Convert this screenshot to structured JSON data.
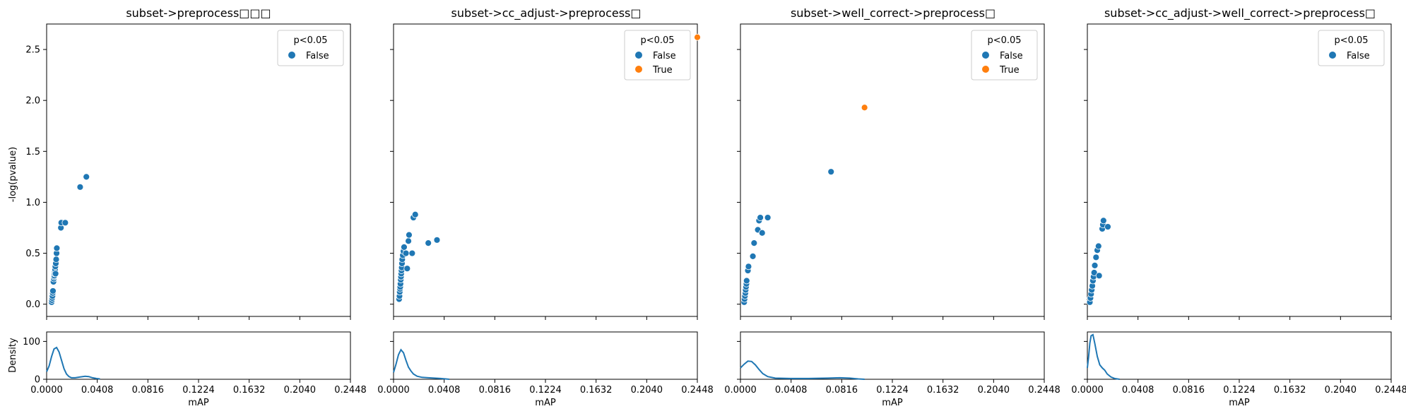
{
  "chart_data": {
    "type": "scatter",
    "shared_y_ticks": [
      "0.0",
      "0.5",
      "1.0",
      "1.5",
      "2.0",
      "2.5"
    ],
    "shared_x_ticks": [
      "0.0000",
      "0.0408",
      "0.0816",
      "0.1224",
      "0.1632",
      "0.2040",
      "0.2448"
    ],
    "xlim": [
      0,
      0.2448
    ],
    "ylim": [
      -0.12,
      2.75
    ],
    "density_ylim": [
      0,
      125
    ],
    "density_ticks": [
      "0",
      "100"
    ],
    "ylabel": "-log(pvalue)",
    "density_ylabel": "Density",
    "xlabel": "mAP",
    "colors": {
      "False": "#1f77b4",
      "True": "#ff7f0e"
    },
    "legend_title": "p<0.05",
    "legend_placement": "top-right",
    "panels": [
      {
        "title": "subset->preprocess□□□",
        "legend": [
          "False"
        ],
        "points": [
          {
            "x": 0.004,
            "y": 0.02,
            "g": "False"
          },
          {
            "x": 0.0042,
            "y": 0.04,
            "g": "False"
          },
          {
            "x": 0.0045,
            "y": 0.06,
            "g": "False"
          },
          {
            "x": 0.0047,
            "y": 0.08,
            "g": "False"
          },
          {
            "x": 0.0049,
            "y": 0.11,
            "g": "False"
          },
          {
            "x": 0.0051,
            "y": 0.13,
            "g": "False"
          },
          {
            "x": 0.0055,
            "y": 0.22,
            "g": "False"
          },
          {
            "x": 0.0058,
            "y": 0.25,
            "g": "False"
          },
          {
            "x": 0.006,
            "y": 0.27,
            "g": "False"
          },
          {
            "x": 0.0062,
            "y": 0.28,
            "g": "False"
          },
          {
            "x": 0.0064,
            "y": 0.3,
            "g": "False"
          },
          {
            "x": 0.0066,
            "y": 0.32,
            "g": "False"
          },
          {
            "x": 0.0068,
            "y": 0.34,
            "g": "False"
          },
          {
            "x": 0.007,
            "y": 0.37,
            "g": "False"
          },
          {
            "x": 0.0072,
            "y": 0.3,
            "g": "False"
          },
          {
            "x": 0.0074,
            "y": 0.4,
            "g": "False"
          },
          {
            "x": 0.0077,
            "y": 0.44,
            "g": "False"
          },
          {
            "x": 0.008,
            "y": 0.5,
            "g": "False"
          },
          {
            "x": 0.0082,
            "y": 0.55,
            "g": "False"
          },
          {
            "x": 0.0115,
            "y": 0.75,
            "g": "False"
          },
          {
            "x": 0.0118,
            "y": 0.8,
            "g": "False"
          },
          {
            "x": 0.015,
            "y": 0.8,
            "g": "False"
          },
          {
            "x": 0.027,
            "y": 1.15,
            "g": "False"
          },
          {
            "x": 0.032,
            "y": 1.25,
            "g": "False"
          }
        ],
        "density": [
          {
            "x": 0.0,
            "y": 20
          },
          {
            "x": 0.002,
            "y": 35
          },
          {
            "x": 0.004,
            "y": 60
          },
          {
            "x": 0.006,
            "y": 80
          },
          {
            "x": 0.008,
            "y": 84
          },
          {
            "x": 0.01,
            "y": 72
          },
          {
            "x": 0.012,
            "y": 50
          },
          {
            "x": 0.014,
            "y": 28
          },
          {
            "x": 0.016,
            "y": 14
          },
          {
            "x": 0.018,
            "y": 7
          },
          {
            "x": 0.02,
            "y": 4
          },
          {
            "x": 0.023,
            "y": 4
          },
          {
            "x": 0.027,
            "y": 6
          },
          {
            "x": 0.031,
            "y": 8
          },
          {
            "x": 0.034,
            "y": 7
          },
          {
            "x": 0.037,
            "y": 4
          },
          {
            "x": 0.04,
            "y": 2
          },
          {
            "x": 0.043,
            "y": 1
          }
        ]
      },
      {
        "title": "subset->cc_adjust->preprocess□",
        "legend": [
          "False",
          "True"
        ],
        "points": [
          {
            "x": 0.0045,
            "y": 0.05,
            "g": "False"
          },
          {
            "x": 0.0048,
            "y": 0.08,
            "g": "False"
          },
          {
            "x": 0.005,
            "y": 0.12,
            "g": "False"
          },
          {
            "x": 0.0052,
            "y": 0.15,
            "g": "False"
          },
          {
            "x": 0.0054,
            "y": 0.17,
            "g": "False"
          },
          {
            "x": 0.0056,
            "y": 0.2,
            "g": "False"
          },
          {
            "x": 0.0058,
            "y": 0.24,
            "g": "False"
          },
          {
            "x": 0.006,
            "y": 0.27,
            "g": "False"
          },
          {
            "x": 0.0062,
            "y": 0.3,
            "g": "False"
          },
          {
            "x": 0.0064,
            "y": 0.33,
            "g": "False"
          },
          {
            "x": 0.0066,
            "y": 0.36,
            "g": "False"
          },
          {
            "x": 0.0068,
            "y": 0.4,
            "g": "False"
          },
          {
            "x": 0.007,
            "y": 0.44,
            "g": "False"
          },
          {
            "x": 0.0075,
            "y": 0.48,
            "g": "False"
          },
          {
            "x": 0.008,
            "y": 0.52,
            "g": "False"
          },
          {
            "x": 0.0085,
            "y": 0.56,
            "g": "False"
          },
          {
            "x": 0.01,
            "y": 0.5,
            "g": "False"
          },
          {
            "x": 0.011,
            "y": 0.35,
            "g": "False"
          },
          {
            "x": 0.012,
            "y": 0.62,
            "g": "False"
          },
          {
            "x": 0.0125,
            "y": 0.68,
            "g": "False"
          },
          {
            "x": 0.015,
            "y": 0.5,
            "g": "False"
          },
          {
            "x": 0.016,
            "y": 0.85,
            "g": "False"
          },
          {
            "x": 0.0175,
            "y": 0.88,
            "g": "False"
          },
          {
            "x": 0.028,
            "y": 0.6,
            "g": "False"
          },
          {
            "x": 0.035,
            "y": 0.63,
            "g": "False"
          },
          {
            "x": 0.2448,
            "y": 2.62,
            "g": "True"
          }
        ],
        "density": [
          {
            "x": 0.0,
            "y": 18
          },
          {
            "x": 0.002,
            "y": 40
          },
          {
            "x": 0.004,
            "y": 65
          },
          {
            "x": 0.006,
            "y": 78
          },
          {
            "x": 0.008,
            "y": 70
          },
          {
            "x": 0.01,
            "y": 50
          },
          {
            "x": 0.012,
            "y": 32
          },
          {
            "x": 0.014,
            "y": 22
          },
          {
            "x": 0.016,
            "y": 14
          },
          {
            "x": 0.019,
            "y": 8
          },
          {
            "x": 0.023,
            "y": 5
          },
          {
            "x": 0.028,
            "y": 4
          },
          {
            "x": 0.033,
            "y": 3
          },
          {
            "x": 0.038,
            "y": 2
          },
          {
            "x": 0.042,
            "y": 1
          },
          {
            "x": 0.045,
            "y": 0
          }
        ]
      },
      {
        "title": "subset->well_correct->preprocess□",
        "legend": [
          "False",
          "True"
        ],
        "points": [
          {
            "x": 0.003,
            "y": 0.02,
            "g": "False"
          },
          {
            "x": 0.0033,
            "y": 0.05,
            "g": "False"
          },
          {
            "x": 0.0036,
            "y": 0.08,
            "g": "False"
          },
          {
            "x": 0.004,
            "y": 0.11,
            "g": "False"
          },
          {
            "x": 0.0042,
            "y": 0.14,
            "g": "False"
          },
          {
            "x": 0.0045,
            "y": 0.17,
            "g": "False"
          },
          {
            "x": 0.0048,
            "y": 0.2,
            "g": "False"
          },
          {
            "x": 0.005,
            "y": 0.23,
            "g": "False"
          },
          {
            "x": 0.006,
            "y": 0.33,
            "g": "False"
          },
          {
            "x": 0.0065,
            "y": 0.37,
            "g": "False"
          },
          {
            "x": 0.01,
            "y": 0.47,
            "g": "False"
          },
          {
            "x": 0.011,
            "y": 0.6,
            "g": "False"
          },
          {
            "x": 0.014,
            "y": 0.73,
            "g": "False"
          },
          {
            "x": 0.015,
            "y": 0.82,
            "g": "False"
          },
          {
            "x": 0.016,
            "y": 0.85,
            "g": "False"
          },
          {
            "x": 0.0175,
            "y": 0.7,
            "g": "False"
          },
          {
            "x": 0.022,
            "y": 0.85,
            "g": "False"
          },
          {
            "x": 0.073,
            "y": 1.3,
            "g": "False"
          },
          {
            "x": 0.1,
            "y": 1.93,
            "g": "True"
          }
        ],
        "density": [
          {
            "x": 0.0,
            "y": 30
          },
          {
            "x": 0.003,
            "y": 40
          },
          {
            "x": 0.006,
            "y": 48
          },
          {
            "x": 0.009,
            "y": 47
          },
          {
            "x": 0.012,
            "y": 38
          },
          {
            "x": 0.015,
            "y": 26
          },
          {
            "x": 0.018,
            "y": 15
          },
          {
            "x": 0.022,
            "y": 7
          },
          {
            "x": 0.028,
            "y": 3
          },
          {
            "x": 0.04,
            "y": 2
          },
          {
            "x": 0.055,
            "y": 2
          },
          {
            "x": 0.07,
            "y": 3
          },
          {
            "x": 0.08,
            "y": 4
          },
          {
            "x": 0.088,
            "y": 3
          },
          {
            "x": 0.095,
            "y": 1
          },
          {
            "x": 0.1,
            "y": 0
          }
        ]
      },
      {
        "title": "subset->cc_adjust->well_correct->preprocess□",
        "legend": [
          "False"
        ],
        "points": [
          {
            "x": 0.002,
            "y": 0.02,
            "g": "False"
          },
          {
            "x": 0.0025,
            "y": 0.06,
            "g": "False"
          },
          {
            "x": 0.003,
            "y": 0.1,
            "g": "False"
          },
          {
            "x": 0.0035,
            "y": 0.14,
            "g": "False"
          },
          {
            "x": 0.004,
            "y": 0.18,
            "g": "False"
          },
          {
            "x": 0.0045,
            "y": 0.23,
            "g": "False"
          },
          {
            "x": 0.005,
            "y": 0.27,
            "g": "False"
          },
          {
            "x": 0.0055,
            "y": 0.31,
            "g": "False"
          },
          {
            "x": 0.006,
            "y": 0.38,
            "g": "False"
          },
          {
            "x": 0.007,
            "y": 0.46,
            "g": "False"
          },
          {
            "x": 0.008,
            "y": 0.53,
            "g": "False"
          },
          {
            "x": 0.009,
            "y": 0.57,
            "g": "False"
          },
          {
            "x": 0.0095,
            "y": 0.28,
            "g": "False"
          },
          {
            "x": 0.012,
            "y": 0.74,
            "g": "False"
          },
          {
            "x": 0.0125,
            "y": 0.78,
            "g": "False"
          },
          {
            "x": 0.013,
            "y": 0.82,
            "g": "False"
          },
          {
            "x": 0.0165,
            "y": 0.76,
            "g": "False"
          }
        ],
        "density": [
          {
            "x": 0.0,
            "y": 30
          },
          {
            "x": 0.001,
            "y": 60
          },
          {
            "x": 0.002,
            "y": 95
          },
          {
            "x": 0.003,
            "y": 115
          },
          {
            "x": 0.0045,
            "y": 118
          },
          {
            "x": 0.006,
            "y": 95
          },
          {
            "x": 0.008,
            "y": 60
          },
          {
            "x": 0.01,
            "y": 38
          },
          {
            "x": 0.012,
            "y": 30
          },
          {
            "x": 0.014,
            "y": 24
          },
          {
            "x": 0.016,
            "y": 14
          },
          {
            "x": 0.019,
            "y": 6
          },
          {
            "x": 0.022,
            "y": 2
          },
          {
            "x": 0.026,
            "y": 0
          }
        ]
      }
    ]
  }
}
